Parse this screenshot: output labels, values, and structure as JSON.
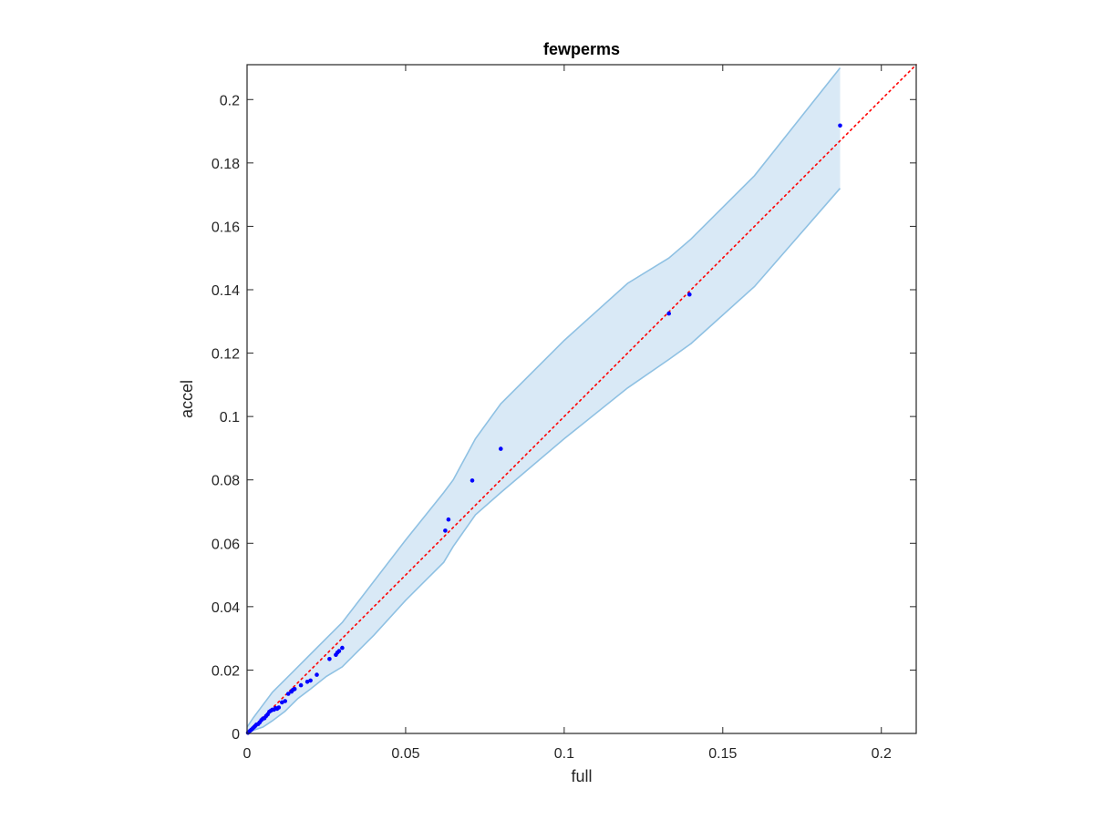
{
  "chart_data": {
    "type": "scatter",
    "title": "fewperms",
    "xlabel": "full",
    "ylabel": "accel",
    "xlim": [
      0,
      0.211
    ],
    "ylim": [
      0,
      0.211
    ],
    "xticks": [
      0,
      0.05,
      0.1,
      0.15,
      0.2
    ],
    "xtick_labels": [
      "0",
      "0.05",
      "0.1",
      "0.15",
      "0.2"
    ],
    "yticks": [
      0,
      0.02,
      0.04,
      0.06,
      0.08,
      0.1,
      0.12,
      0.14,
      0.16,
      0.18,
      0.2
    ],
    "ytick_labels": [
      "0",
      "0.02",
      "0.04",
      "0.06",
      "0.08",
      "0.1",
      "0.12",
      "0.14",
      "0.16",
      "0.18",
      "0.2"
    ],
    "grid": false,
    "legend": "none",
    "reference_line": {
      "style": "dotted",
      "color": "#ff0000",
      "x": [
        0,
        0.211
      ],
      "y": [
        0,
        0.211
      ]
    },
    "band": {
      "color_fill": "#d9e9f6",
      "color_edge": "#8fc1e3",
      "upper": {
        "x": [
          0,
          0.002,
          0.005,
          0.008,
          0.012,
          0.016,
          0.02,
          0.025,
          0.03,
          0.04,
          0.05,
          0.062,
          0.065,
          0.072,
          0.08,
          0.1,
          0.12,
          0.133,
          0.14,
          0.16,
          0.187
        ],
        "y": [
          0.002,
          0.005,
          0.009,
          0.013,
          0.017,
          0.021,
          0.025,
          0.03,
          0.035,
          0.048,
          0.061,
          0.076,
          0.08,
          0.093,
          0.104,
          0.124,
          0.142,
          0.15,
          0.156,
          0.176,
          0.21
        ]
      },
      "lower": {
        "x": [
          0,
          0.002,
          0.005,
          0.008,
          0.012,
          0.016,
          0.02,
          0.025,
          0.03,
          0.04,
          0.05,
          0.062,
          0.065,
          0.072,
          0.08,
          0.1,
          0.12,
          0.133,
          0.14,
          0.16,
          0.187
        ],
        "y": [
          0,
          0.001,
          0.002,
          0.004,
          0.007,
          0.011,
          0.014,
          0.018,
          0.021,
          0.031,
          0.042,
          0.054,
          0.059,
          0.069,
          0.076,
          0.093,
          0.109,
          0.118,
          0.123,
          0.141,
          0.172
        ]
      },
      "end_x": 0.187
    },
    "series": [
      {
        "color": "#0000ff",
        "points": [
          [
            0.0003,
            0.0002
          ],
          [
            0.0006,
            0.0005
          ],
          [
            0.001,
            0.0009
          ],
          [
            0.0014,
            0.0012
          ],
          [
            0.0018,
            0.0016
          ],
          [
            0.0022,
            0.002
          ],
          [
            0.0026,
            0.0024
          ],
          [
            0.003,
            0.0028
          ],
          [
            0.0035,
            0.003
          ],
          [
            0.004,
            0.0035
          ],
          [
            0.0045,
            0.0042
          ],
          [
            0.005,
            0.0047
          ],
          [
            0.0055,
            0.0048
          ],
          [
            0.006,
            0.0055
          ],
          [
            0.0065,
            0.006
          ],
          [
            0.007,
            0.0068
          ],
          [
            0.0075,
            0.0072
          ],
          [
            0.008,
            0.0075
          ],
          [
            0.0085,
            0.0075
          ],
          [
            0.009,
            0.008
          ],
          [
            0.0095,
            0.0078
          ],
          [
            0.01,
            0.0082
          ],
          [
            0.011,
            0.0098
          ],
          [
            0.012,
            0.0102
          ],
          [
            0.013,
            0.0125
          ],
          [
            0.014,
            0.0132
          ],
          [
            0.0145,
            0.0138
          ],
          [
            0.015,
            0.014
          ],
          [
            0.017,
            0.0152
          ],
          [
            0.019,
            0.0163
          ],
          [
            0.02,
            0.0167
          ],
          [
            0.022,
            0.0185
          ],
          [
            0.026,
            0.0235
          ],
          [
            0.028,
            0.0248
          ],
          [
            0.0285,
            0.0255
          ],
          [
            0.029,
            0.026
          ],
          [
            0.03,
            0.027
          ],
          [
            0.0625,
            0.064
          ],
          [
            0.0635,
            0.0675
          ],
          [
            0.071,
            0.0798
          ],
          [
            0.08,
            0.0898
          ],
          [
            0.133,
            0.1325
          ],
          [
            0.1395,
            0.1385
          ],
          [
            0.187,
            0.1918
          ]
        ]
      }
    ]
  }
}
